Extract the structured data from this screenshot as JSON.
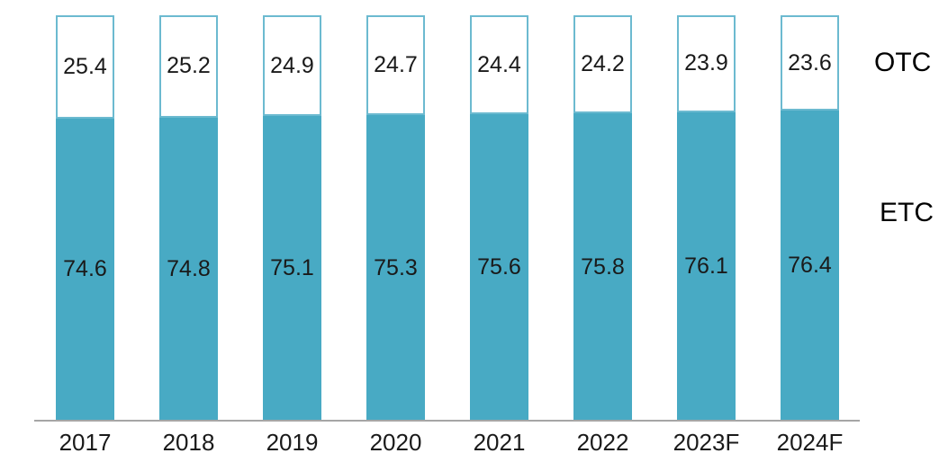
{
  "chart_data": {
    "type": "bar",
    "subtype": "stacked-100-percent",
    "title": "",
    "xlabel": "",
    "ylabel": "",
    "ylim": [
      0,
      100
    ],
    "grid": false,
    "legend_position": "right",
    "categories": [
      "2017",
      "2018",
      "2019",
      "2020",
      "2021",
      "2022",
      "2023F",
      "2024F"
    ],
    "series": [
      {
        "name": "ETC",
        "values": [
          74.6,
          74.8,
          75.1,
          75.3,
          75.6,
          75.8,
          76.1,
          76.4
        ],
        "color": "#48aac4"
      },
      {
        "name": "OTC",
        "values": [
          25.4,
          25.2,
          24.9,
          24.7,
          24.4,
          24.2,
          23.9,
          23.6
        ],
        "color": "#ffffff",
        "border_color": "#6cbad0"
      }
    ],
    "series_labels": {
      "otc": "OTC",
      "etc": "ETC"
    },
    "colors": {
      "etc_fill": "#48aac4",
      "otc_fill": "#ffffff",
      "otc_border": "#6cbad0",
      "axis_line": "#a6a6a6",
      "label_text": "#1a1a1a"
    }
  }
}
